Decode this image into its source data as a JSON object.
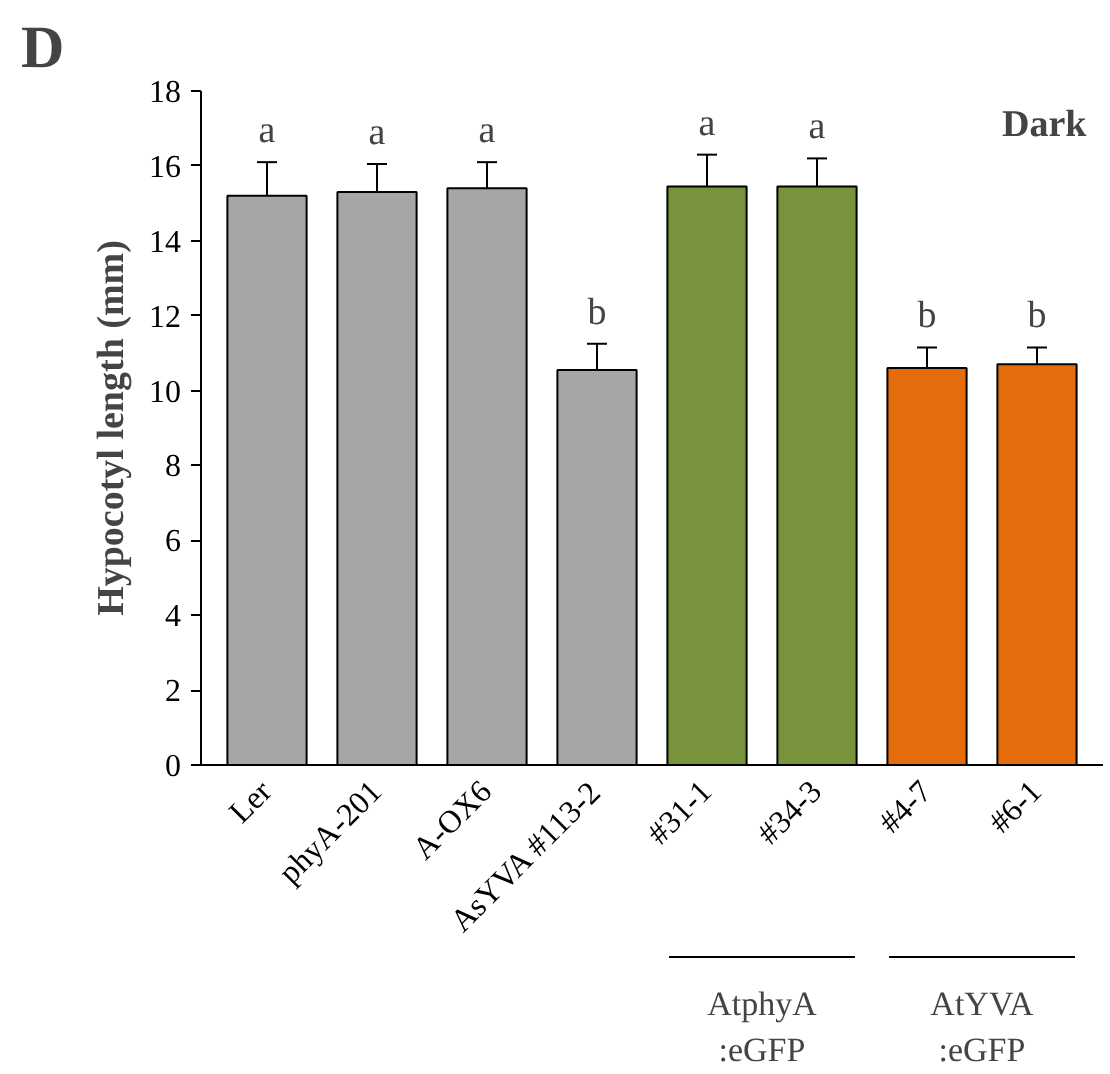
{
  "chart_data": {
    "type": "bar",
    "title": "D",
    "ylabel": "Hypocotyl length (mm)",
    "categories": [
      "Ler",
      "phyA-201",
      "A-OX6",
      "AsYVA #113-2",
      "#31-1",
      "#34-3",
      "#4-7",
      "#6-1"
    ],
    "values": [
      15.2,
      15.3,
      15.4,
      10.55,
      15.45,
      15.45,
      10.6,
      10.7
    ],
    "errors": [
      0.9,
      0.75,
      0.7,
      0.7,
      0.85,
      0.75,
      0.55,
      0.45
    ],
    "colors": [
      "#a6a6a6",
      "#a6a6a6",
      "#a6a6a6",
      "#a6a6a6",
      "#77933c",
      "#77933c",
      "#e46c0a",
      "#e46c0a"
    ],
    "ylim": [
      0,
      18
    ],
    "yticks": [
      0,
      2,
      4,
      6,
      8,
      10,
      12,
      14,
      16,
      18
    ],
    "grid": false,
    "annotations": [
      "a",
      "a",
      "a",
      "b",
      "a",
      "a",
      "b",
      "b",
      "Dark",
      "AtphyA\n:eGFP",
      "AtYVA\n:eGFP"
    ]
  }
}
